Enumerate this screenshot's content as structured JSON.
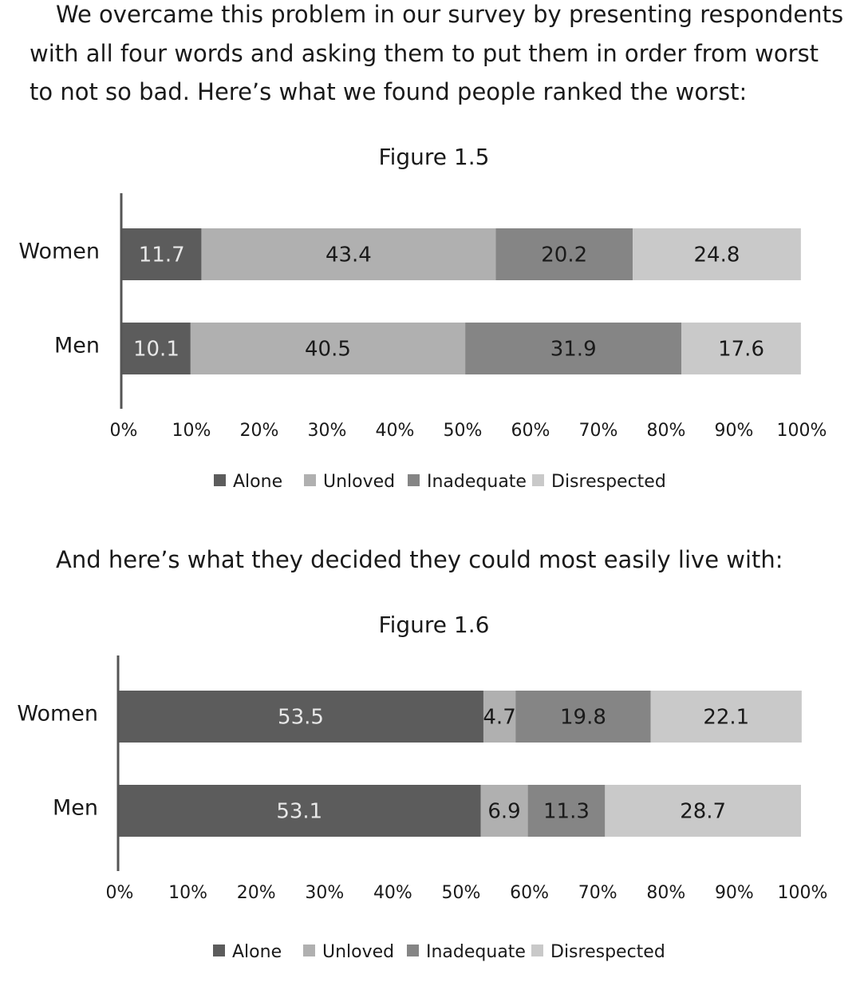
{
  "intro": {
    "line1": "We overcame this problem in our survey by presenting respondents",
    "line2": "with all four words and asking them to put them in order from worst",
    "line3": "to not so bad. Here’s what we found people ranked the worst:"
  },
  "transition": "And here’s what they decided they could most easily live with:",
  "colors": {
    "Alone": "#5c5c5c",
    "Unloved": "#b0b0b0",
    "Inadequate": "#858585",
    "Disrespected": "#c9c9c9",
    "label_on_dark": "#e8e8e8",
    "label_on_light": "#1a1a1a"
  },
  "chart_data": [
    {
      "type": "bar",
      "orientation": "horizontal",
      "stacked": true,
      "title": "Figure 1.5",
      "categories": [
        "Women",
        "Men"
      ],
      "series": [
        {
          "name": "Alone",
          "values": [
            11.7,
            10.1
          ]
        },
        {
          "name": "Unloved",
          "values": [
            43.4,
            40.5
          ]
        },
        {
          "name": "Inadequate",
          "values": [
            20.2,
            31.9
          ]
        },
        {
          "name": "Disrespected",
          "values": [
            24.8,
            17.6
          ]
        }
      ],
      "xlim": [
        0,
        100
      ],
      "xticks": [
        "0%",
        "10%",
        "20%",
        "30%",
        "40%",
        "50%",
        "60%",
        "70%",
        "80%",
        "90%",
        "100%"
      ],
      "legend": "bottom",
      "grid": false
    },
    {
      "type": "bar",
      "orientation": "horizontal",
      "stacked": true,
      "title": "Figure 1.6",
      "categories": [
        "Women",
        "Men"
      ],
      "series": [
        {
          "name": "Alone",
          "values": [
            53.5,
            53.1
          ]
        },
        {
          "name": "Unloved",
          "values": [
            4.7,
            6.9
          ]
        },
        {
          "name": "Inadequate",
          "values": [
            19.8,
            11.3
          ]
        },
        {
          "name": "Disrespected",
          "values": [
            22.1,
            28.7
          ]
        }
      ],
      "xlim": [
        0,
        100
      ],
      "xticks": [
        "0%",
        "10%",
        "20%",
        "30%",
        "40%",
        "50%",
        "60%",
        "70%",
        "80%",
        "90%",
        "100%"
      ],
      "legend": "bottom",
      "grid": false
    }
  ]
}
